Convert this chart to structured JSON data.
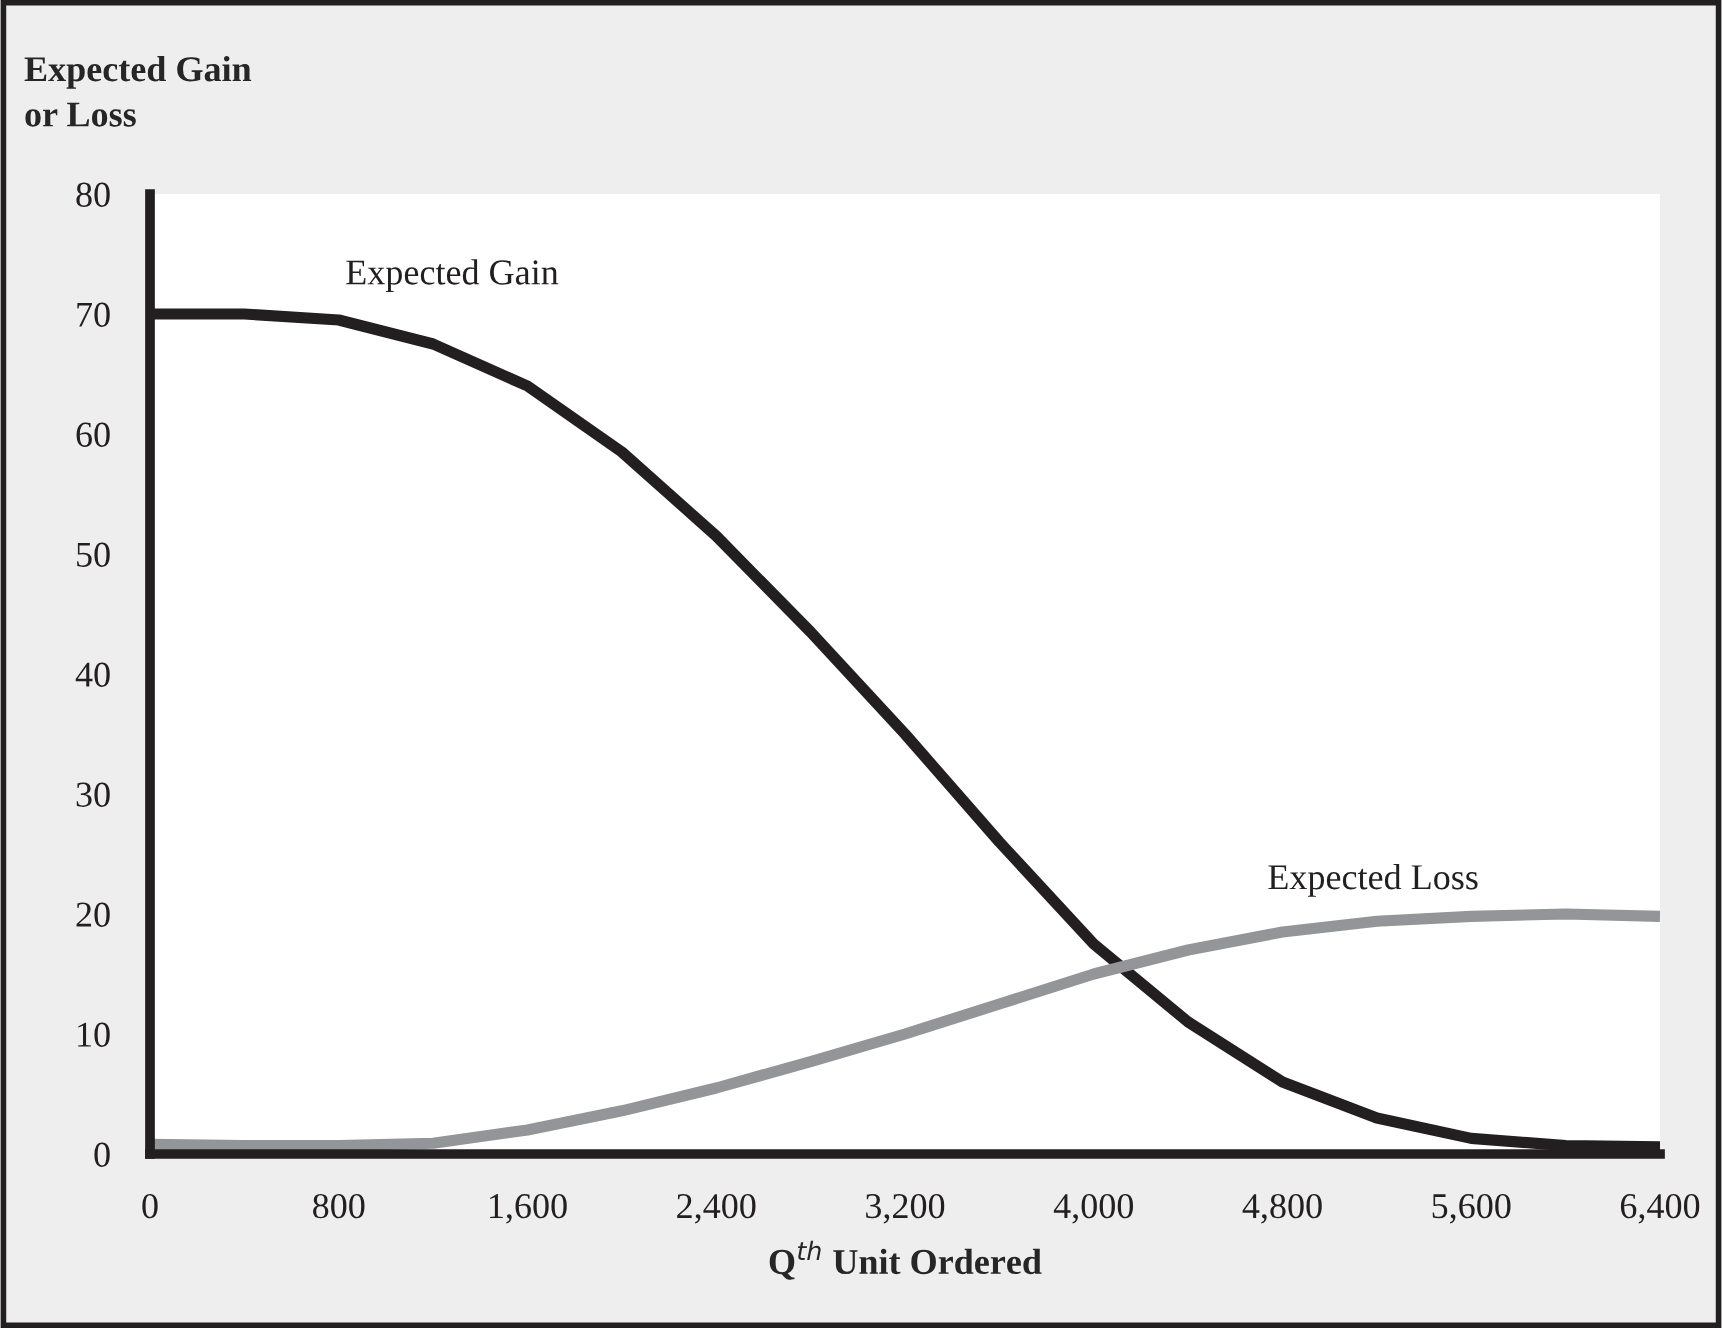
{
  "chart_data": {
    "type": "line",
    "ylabel": "Expected Gain\nor Loss",
    "xlabel": "Q$^{th}$ Unit Ordered",
    "x": [
      0,
      400,
      800,
      1200,
      1600,
      2000,
      2400,
      2800,
      3200,
      3600,
      4000,
      4400,
      4800,
      5200,
      5600,
      6000,
      6400
    ],
    "series": [
      {
        "name": "Expected Gain",
        "color": "#231f20",
        "values": [
          70,
          70,
          69.5,
          67.5,
          64,
          58.5,
          51.5,
          43.5,
          35,
          26,
          17.5,
          11,
          6,
          3,
          1.3,
          0.7,
          0.6
        ]
      },
      {
        "name": "Expected Loss",
        "color": "#939598",
        "values": [
          0.8,
          0.7,
          0.7,
          0.9,
          2,
          3.6,
          5.5,
          7.7,
          10,
          12.5,
          15,
          17,
          18.5,
          19.4,
          19.8,
          20,
          19.8
        ]
      }
    ],
    "xlim": [
      0,
      6400
    ],
    "xticks": [
      0,
      {
        "value": 800,
        "label": "800"
      },
      {
        "value": 1600,
        "label": "1,600"
      },
      {
        "value": 2400,
        "label": "2,400"
      },
      {
        "value": 3200,
        "label": "3,200"
      },
      {
        "value": 4000,
        "label": "4,000"
      },
      {
        "value": 4800,
        "label": "4,800"
      },
      {
        "value": 5600,
        "label": "5,600"
      },
      {
        "value": 6400,
        "label": "6,400"
      }
    ],
    "ylim": [
      0,
      80
    ],
    "yticks": [
      0,
      10,
      20,
      30,
      40,
      50,
      60,
      70,
      80
    ],
    "grid": false,
    "legend": false,
    "marker": "none",
    "line_style": "solid"
  }
}
